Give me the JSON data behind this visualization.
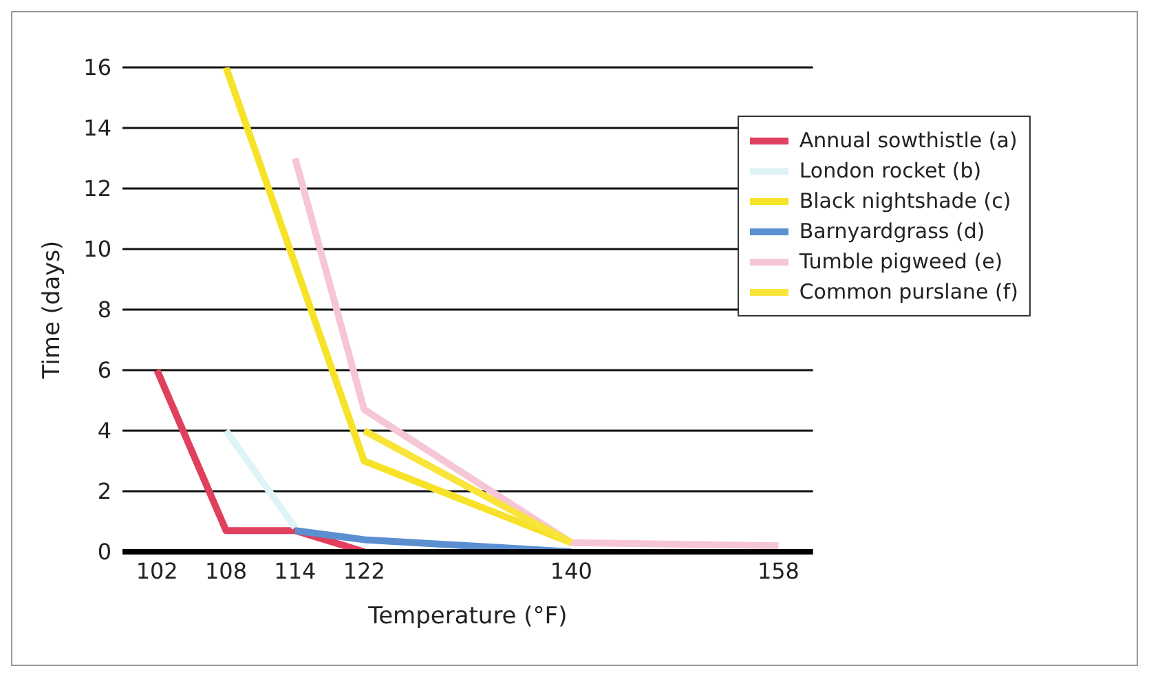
{
  "chart_data": {
    "type": "line",
    "xlabel": "Temperature (°F)",
    "ylabel": "Time (days)",
    "categories": [
      "102",
      "108",
      "114",
      "122",
      null,
      null,
      "140",
      null,
      null,
      "158"
    ],
    "series": [
      {
        "name": "Annual sowthistle (a)",
        "color": "#e0405e",
        "values": [
          6,
          0.7,
          0.7,
          0,
          null,
          null,
          null,
          null,
          null,
          null
        ]
      },
      {
        "name": "London rocket (b)",
        "color": "#dff4f6",
        "values": [
          null,
          4,
          0.8,
          null,
          null,
          null,
          null,
          null,
          null,
          null
        ]
      },
      {
        "name": "Black nightshade (c)",
        "color": "#f7e22a",
        "values": [
          null,
          16,
          9.5,
          3,
          null,
          null,
          0.3,
          null,
          null,
          null
        ]
      },
      {
        "name": "Barnyardgrass (d)",
        "color": "#5b8fd0",
        "values": [
          null,
          null,
          0.7,
          0.4,
          null,
          null,
          0,
          null,
          null,
          null
        ]
      },
      {
        "name": "Tumble pigweed (e)",
        "color": "#f6c6d6",
        "values": [
          null,
          null,
          13,
          4.7,
          null,
          null,
          0.3,
          null,
          null,
          0.2
        ]
      },
      {
        "name": "Common purslane (f)",
        "color": "#f9e43a",
        "values": [
          null,
          null,
          null,
          4,
          null,
          null,
          0.3,
          null,
          null,
          null
        ]
      }
    ],
    "ylim": [
      0,
      16
    ],
    "yticks": [
      0,
      2,
      4,
      6,
      8,
      10,
      12,
      14,
      16
    ],
    "grid": "y",
    "legend": "top right",
    "marker": "none",
    "line_style": "solid"
  }
}
